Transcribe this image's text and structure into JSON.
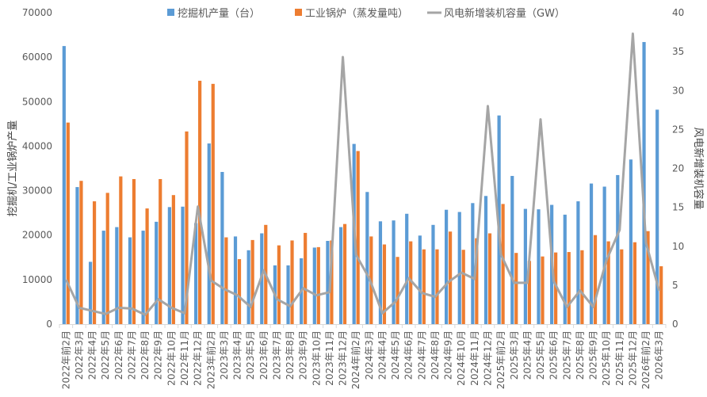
{
  "chart_data": {
    "type": "bar",
    "categories": [
      "2022年前2月",
      "2022年3月",
      "2022年4月",
      "2022年5月",
      "2022年6月",
      "2022年7月",
      "2022年8月",
      "2022年9月",
      "2022年10月",
      "2022年11月",
      "2022年12月",
      "2023年前2月",
      "2023年3月",
      "2023年4月",
      "2023年5月",
      "2023年6月",
      "2023年7月",
      "2023年8月",
      "2023年9月",
      "2023年10月",
      "2023年11月",
      "2023年12月",
      "2024年前2月",
      "2024年3月",
      "2024年4月",
      "2024年5月",
      "2024年6月",
      "2024年7月",
      "2024年8月",
      "2024年9月",
      "2024年10月",
      "2024年11月",
      "2024年12月",
      "2025年前2月",
      "2025年3月",
      "2025年4月",
      "2025年5月",
      "2025年6月",
      "2025年7月",
      "2025年8月",
      "2025年9月",
      "2025年10月",
      "2025年11月",
      "2025年12月",
      "2026年前2月",
      "2026年3月"
    ],
    "series": [
      {
        "name": "挖掘机产量（台）",
        "type": "bar",
        "axis": "left",
        "color": "#5B9BD5",
        "values": [
          62500,
          30800,
          14000,
          21000,
          21800,
          19500,
          21000,
          23000,
          26300,
          26400,
          22700,
          40600,
          34200,
          19700,
          16600,
          20400,
          13200,
          13200,
          14800,
          17200,
          18700,
          21800,
          40500,
          29700,
          23100,
          23300,
          24800,
          19900,
          22300,
          25700,
          25200,
          27200,
          28800,
          46900,
          33300,
          25900,
          25800,
          26800,
          24600,
          27600,
          31600,
          30900,
          33500,
          37000,
          63400,
          48200
        ]
      },
      {
        "name": "工业锅炉（蒸发量吨）",
        "type": "bar",
        "axis": "left",
        "color": "#ED7D31",
        "values": [
          45300,
          32200,
          27600,
          29500,
          33200,
          32600,
          26000,
          32600,
          29000,
          43300,
          54700,
          54000,
          19500,
          14600,
          18900,
          22300,
          17700,
          18800,
          20500,
          17300,
          18800,
          22500,
          38900,
          19700,
          17900,
          15100,
          18600,
          16800,
          16800,
          20800,
          16700,
          19300,
          20400,
          27000,
          16000,
          14200,
          15200,
          16100,
          16200,
          16600,
          20000,
          18600,
          16800,
          18400,
          20900,
          13000
        ]
      },
      {
        "name": "风电新增装机容量（GW）",
        "type": "line",
        "axis": "right",
        "color": "#A5A5A5",
        "values": [
          5.7,
          2.1,
          1.7,
          1.3,
          2.1,
          2.0,
          1.2,
          3.2,
          2.1,
          1.4,
          15.1,
          5.6,
          4.5,
          3.7,
          2.2,
          6.9,
          3.2,
          2.3,
          4.6,
          3.7,
          4.1,
          34.3,
          8.9,
          5.9,
          1.4,
          2.9,
          5.9,
          4.0,
          3.5,
          5.4,
          6.6,
          5.8,
          28.0,
          8.9,
          5.3,
          5.3,
          26.3,
          5.5,
          2.2,
          4.3,
          2.2,
          8.2,
          12.1,
          37.3,
          10.4,
          4.3
        ]
      }
    ],
    "y_left": {
      "label": "挖掘机/工业锅炉产量",
      "ylim": [
        0,
        70000
      ],
      "ticks": [
        "0",
        "10000",
        "20000",
        "30000",
        "40000",
        "50000",
        "60000",
        "70000"
      ]
    },
    "y_right": {
      "label": "风电新增装机容量",
      "ylim": [
        0,
        40
      ],
      "ticks": [
        "0",
        "5",
        "10",
        "15",
        "20",
        "25",
        "30",
        "35",
        "40"
      ]
    },
    "legend": "top-center",
    "grid": false
  }
}
